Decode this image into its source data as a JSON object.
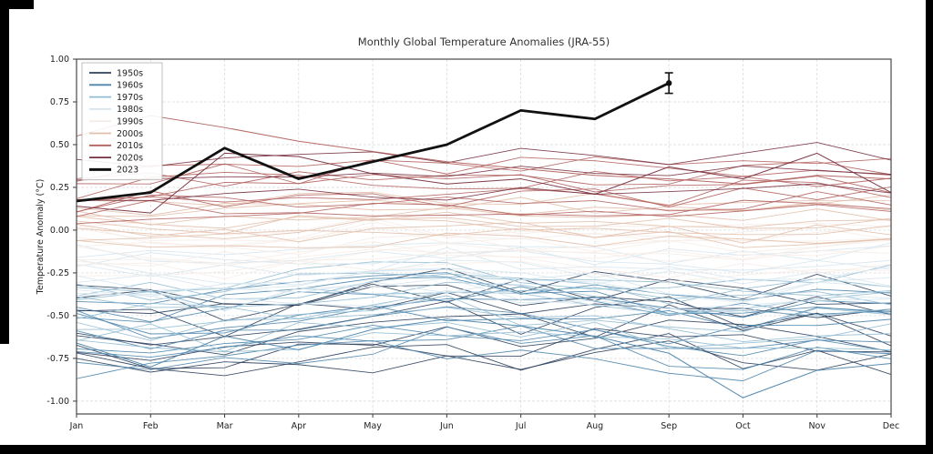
{
  "frame": {
    "edge_color": "#000000",
    "background": "#ffffff"
  },
  "chart_data": {
    "type": "line",
    "title": "Monthly Global Temperature Anomalies (JRA-55)",
    "ylabel": "Temperature Anomaly (°C)",
    "xlabel": "",
    "x_ticks": [
      "Jan",
      "Feb",
      "Mar",
      "Apr",
      "May",
      "Jun",
      "Jul",
      "Aug",
      "Sep",
      "Oct",
      "Nov",
      "Dec"
    ],
    "y_ticks": [
      1.0,
      0.75,
      0.5,
      0.25,
      0.0,
      -0.25,
      -0.5,
      -0.75,
      -1.0
    ],
    "ylim": [
      -1.075,
      1.0
    ],
    "grid": true,
    "grid_color": "#d6d6d6",
    "spine_color": "#3a3a3a",
    "tick_text_color": "#222222",
    "title_color": "#333333",
    "legend_position": "upper-left",
    "legend_entries": [
      "1950s",
      "1960s",
      "1970s",
      "1980s",
      "1990s",
      "2000s",
      "2010s",
      "2020s",
      "2023"
    ],
    "decades": [
      {
        "name": "1950s",
        "color": "#2b3f5c",
        "lines": 10,
        "spread": 0.22,
        "mean": [
          -0.55,
          -0.6,
          -0.62,
          -0.6,
          -0.55,
          -0.52,
          -0.55,
          -0.52,
          -0.5,
          -0.55,
          -0.55,
          -0.58
        ]
      },
      {
        "name": "1960s",
        "color": "#4f86ad",
        "lines": 10,
        "spread": 0.2,
        "mean": [
          -0.58,
          -0.62,
          -0.56,
          -0.54,
          -0.52,
          -0.5,
          -0.52,
          -0.55,
          -0.58,
          -0.6,
          -0.54,
          -0.56
        ]
      },
      {
        "name": "1970s",
        "color": "#92bdd3",
        "lines": 10,
        "spread": 0.18,
        "mean": [
          -0.45,
          -0.48,
          -0.5,
          -0.46,
          -0.42,
          -0.4,
          -0.42,
          -0.45,
          -0.48,
          -0.5,
          -0.45,
          -0.44
        ]
      },
      {
        "name": "1980s",
        "color": "#d6e6ee",
        "lines": 10,
        "spread": 0.15,
        "mean": [
          -0.25,
          -0.28,
          -0.3,
          -0.26,
          -0.24,
          -0.22,
          -0.24,
          -0.26,
          -0.28,
          -0.3,
          -0.26,
          -0.25
        ]
      },
      {
        "name": "1990s",
        "color": "#f6ece7",
        "lines": 10,
        "spread": 0.13,
        "mean": [
          -0.1,
          -0.12,
          -0.14,
          -0.1,
          -0.08,
          -0.08,
          -0.1,
          -0.12,
          -0.12,
          -0.14,
          -0.1,
          -0.1
        ]
      },
      {
        "name": "2000s",
        "color": "#e2bfab",
        "lines": 10,
        "spread": 0.12,
        "mean": [
          0.05,
          0.03,
          0.02,
          0.05,
          0.06,
          0.08,
          0.06,
          0.05,
          0.04,
          0.02,
          0.05,
          0.06
        ]
      },
      {
        "name": "2010s",
        "color": "#b26360",
        "lines": 10,
        "spread": 0.14,
        "mean": [
          0.2,
          0.22,
          0.24,
          0.22,
          0.25,
          0.24,
          0.26,
          0.24,
          0.22,
          0.25,
          0.26,
          0.24
        ]
      },
      {
        "name": "2020s",
        "color": "#77303f",
        "lines": 3,
        "spread": 0.1,
        "mean": [
          0.3,
          0.28,
          0.35,
          0.3,
          0.32,
          0.3,
          0.34,
          0.3,
          0.32,
          0.35,
          0.38,
          0.33
        ]
      }
    ],
    "featured_lines": [
      {
        "decade": "2010s",
        "color": "#b26360",
        "values": [
          0.55,
          0.67,
          0.6,
          0.52,
          0.46,
          0.4,
          0.36,
          0.32,
          0.3,
          0.27,
          0.32,
          0.3
        ]
      },
      {
        "decade": "1960s",
        "color": "#4f86ad",
        "values": [
          -0.66,
          -0.8,
          -0.62,
          -0.7,
          -0.58,
          -0.52,
          -0.56,
          -0.62,
          -0.72,
          -0.98,
          -0.82,
          -0.78
        ]
      },
      {
        "decade": "2020s",
        "color": "#77303f",
        "values": [
          0.14,
          0.1,
          0.45,
          0.43,
          0.33,
          0.27,
          0.3,
          0.21,
          0.37,
          0.3,
          0.45,
          0.22
        ]
      }
    ],
    "series_2023": {
      "name": "2023",
      "color": "#111111",
      "months": [
        "Jan",
        "Feb",
        "Mar",
        "Apr",
        "May",
        "Jun",
        "Jul",
        "Aug",
        "Sep"
      ],
      "values": [
        0.17,
        0.22,
        0.48,
        0.3,
        0.4,
        0.5,
        0.7,
        0.65,
        0.86
      ],
      "error_bar": {
        "month": "Sep",
        "value": 0.86,
        "minus": 0.06,
        "plus": 0.06
      }
    },
    "render_seed": 42
  }
}
